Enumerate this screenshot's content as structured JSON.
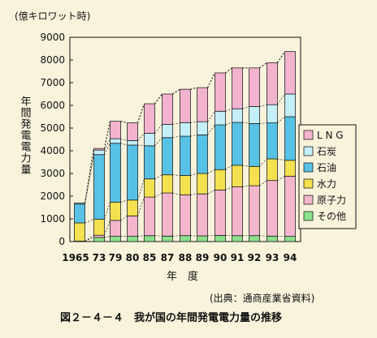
{
  "chart_data": {
    "type": "bar",
    "stacked": true,
    "unit_label": "(億キロワット時)",
    "ylabel": "年間発電電力量",
    "xlabel": "年　度",
    "ylim": [
      0,
      9000
    ],
    "yticks": [
      0,
      1000,
      2000,
      3000,
      4000,
      5000,
      6000,
      7000,
      8000,
      9000
    ],
    "categories": [
      "1965",
      "73",
      "79",
      "80",
      "85",
      "87",
      "88",
      "89",
      "90",
      "91",
      "92",
      "93",
      "94"
    ],
    "series": [
      {
        "name": "その他",
        "color": "#8be08b",
        "values": [
          20,
          180,
          230,
          230,
          260,
          240,
          260,
          250,
          270,
          260,
          260,
          240,
          230
        ]
      },
      {
        "name": "原子力",
        "color": "#f4b6cd",
        "values": [
          0,
          100,
          700,
          900,
          1700,
          1900,
          1800,
          1850,
          2000,
          2150,
          2200,
          2450,
          2650
        ]
      },
      {
        "name": "水力",
        "color": "#f4e14f",
        "values": [
          800,
          700,
          800,
          700,
          800,
          800,
          850,
          900,
          900,
          950,
          850,
          950,
          700
        ]
      },
      {
        "name": "石油",
        "color": "#57c2e6",
        "values": [
          830,
          2850,
          2600,
          2420,
          1460,
          1640,
          1730,
          1700,
          1970,
          1890,
          1890,
          1590,
          1920
        ]
      },
      {
        "name": "石炭",
        "color": "#c4eef8",
        "values": [
          50,
          200,
          200,
          200,
          550,
          580,
          600,
          580,
          600,
          600,
          750,
          800,
          1000
        ]
      },
      {
        "name": "LNG",
        "color": "#f3b3cf",
        "values": [
          0,
          70,
          770,
          780,
          1300,
          1340,
          1470,
          1500,
          1690,
          1800,
          1700,
          1850,
          1870
        ]
      }
    ],
    "legend_labels": [
      "L N G",
      "石炭",
      "石油",
      "水力",
      "原子力",
      "その他"
    ],
    "legend_position": "right",
    "grid": false,
    "connector_lines": "dashed"
  },
  "source_note": "(出典：通商産業省資料)",
  "caption": "図２－４－４　我が国の年間発電電力量の推移"
}
